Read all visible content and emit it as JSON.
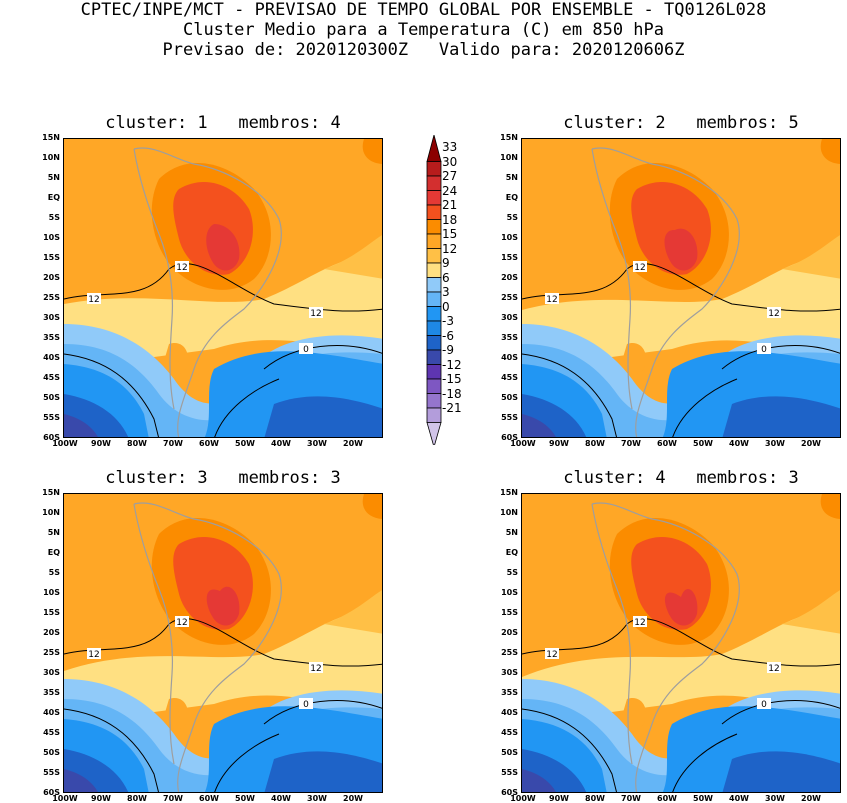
{
  "header": {
    "line1": "CPTEC/INPE/MCT - PREVISAO DE TEMPO GLOBAL POR ENSEMBLE - TQ0126L028",
    "line2": "Cluster Medio para a Temperatura (C) em 850 hPa",
    "line3": "Previsao de: 2020120300Z   Valido para: 2020120606Z"
  },
  "panels": [
    {
      "title": "cluster: 1   membros: 4",
      "contour_labels": [
        "12",
        "12",
        "12",
        "0"
      ]
    },
    {
      "title": "cluster: 2   membros: 5",
      "contour_labels": [
        "12",
        "12",
        "12",
        "0"
      ]
    },
    {
      "title": "cluster: 3   membros: 3",
      "contour_labels": [
        "12",
        "12",
        "12",
        "0"
      ]
    },
    {
      "title": "cluster: 4   membros: 3",
      "contour_labels": [
        "12",
        "12",
        "12",
        "0"
      ]
    }
  ],
  "lat_labels": [
    "15N",
    "10N",
    "5N",
    "EQ",
    "5S",
    "10S",
    "15S",
    "20S",
    "25S",
    "30S",
    "35S",
    "40S",
    "45S",
    "50S",
    "55S",
    "60S"
  ],
  "lon_labels": [
    "100W",
    "90W",
    "80W",
    "70W",
    "60W",
    "50W",
    "40W",
    "30W",
    "20W"
  ],
  "colorbar": {
    "levels": [
      "33",
      "30",
      "27",
      "24",
      "21",
      "18",
      "15",
      "12",
      "9",
      "6",
      "3",
      "0",
      "-3",
      "-6",
      "-9",
      "-12",
      "-15",
      "-18",
      "-21"
    ],
    "colors": [
      "#8b0000",
      "#b71c1c",
      "#d32f2f",
      "#e53935",
      "#f4511e",
      "#fb8c00",
      "#ffa726",
      "#ffc046",
      "#ffe082",
      "#90caf9",
      "#64b5f6",
      "#2196f3",
      "#1e88e5",
      "#1e63c8",
      "#3949ab",
      "#5e35b1",
      "#7e57c2",
      "#9575cd",
      "#b39ddb",
      "#d1c4e9"
    ]
  }
}
